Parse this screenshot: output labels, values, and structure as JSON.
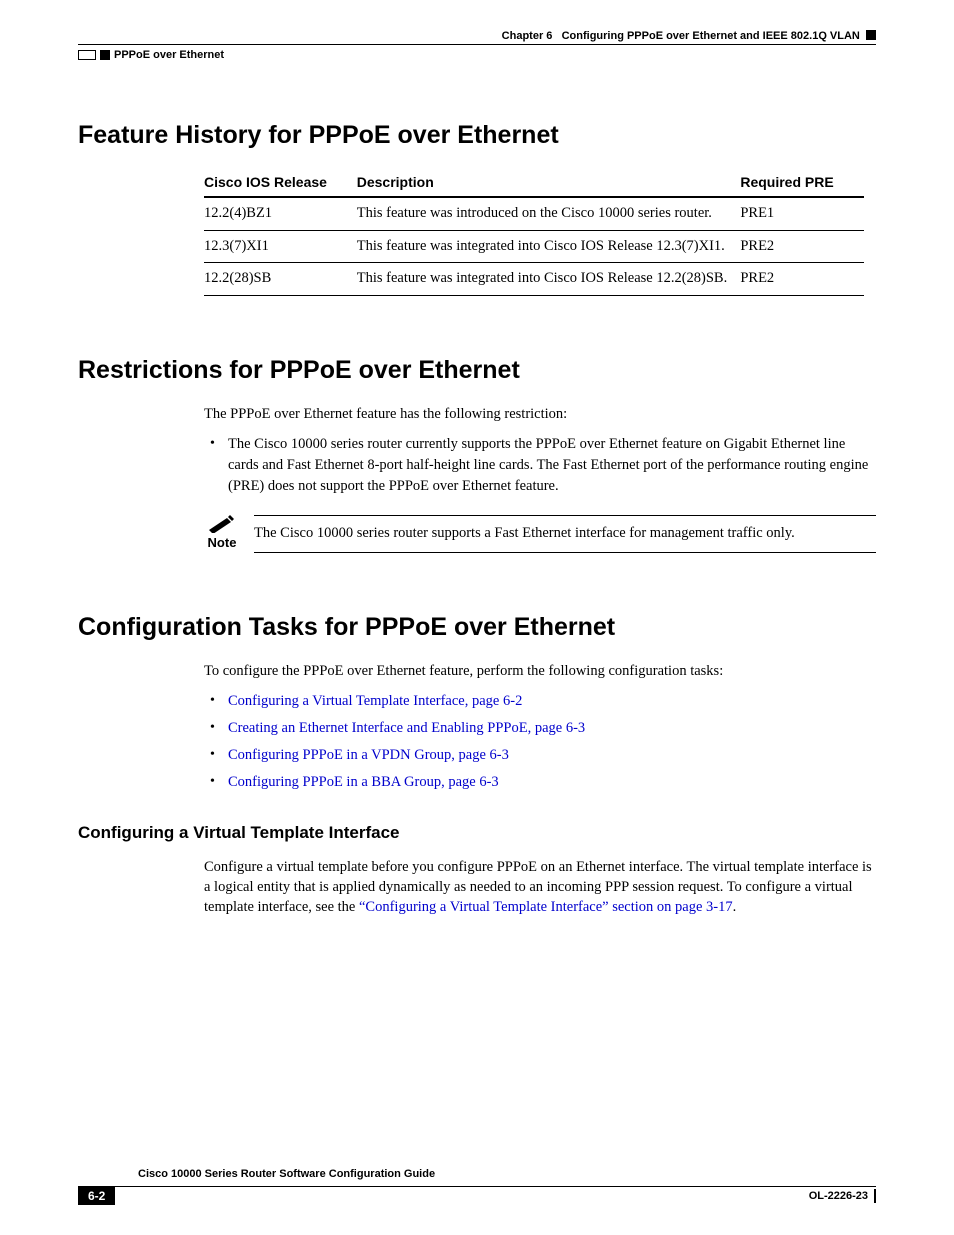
{
  "header": {
    "chapter_label": "Chapter 6",
    "chapter_title": "Configuring PPPoE over Ethernet and IEEE 802.1Q VLAN",
    "topic": "PPPoE over Ethernet"
  },
  "section1": {
    "title": "Feature History for PPPoE over Ethernet",
    "table": {
      "columns": [
        "Cisco IOS Release",
        "Description",
        "Required PRE"
      ],
      "col_widths": [
        "150px",
        "390px",
        "120px"
      ],
      "rows": [
        [
          "12.2(4)BZ1",
          "This feature was introduced on the Cisco 10000 series router.",
          "PRE1"
        ],
        [
          "12.3(7)XI1",
          "This feature was integrated into Cisco IOS Release 12.3(7)XI1.",
          "PRE2"
        ],
        [
          "12.2(28)SB",
          "This feature was integrated into Cisco IOS Release 12.2(28)SB.",
          "PRE2"
        ]
      ]
    }
  },
  "section2": {
    "title": "Restrictions for PPPoE over Ethernet",
    "intro": "The PPPoE over Ethernet feature has the following restriction:",
    "bullet1": "The Cisco 10000 series router currently supports the PPPoE over Ethernet feature on Gigabit Ethernet line cards and Fast Ethernet 8-port half-height line cards. The Fast Ethernet port of the performance routing engine (PRE) does not support the PPPoE over Ethernet feature.",
    "note_label": "Note",
    "note_text": "The Cisco 10000 series router supports a Fast Ethernet interface for management traffic only."
  },
  "section3": {
    "title": "Configuration Tasks for PPPoE over Ethernet",
    "intro": "To configure the PPPoE over Ethernet feature, perform the following configuration tasks:",
    "links": [
      "Configuring a Virtual Template Interface, page 6-2",
      "Creating an Ethernet Interface and Enabling PPPoE, page 6-3",
      "Configuring PPPoE in a VPDN Group, page 6-3",
      "Configuring PPPoE in a BBA Group, page 6-3"
    ],
    "subsection": {
      "title": "Configuring a Virtual Template Interface",
      "body_pre": "Configure a virtual template before you configure PPPoE on an Ethernet interface. The virtual template interface is a logical entity that is applied dynamically as needed to an incoming PPP session request. To configure a virtual template interface, see the ",
      "body_link": "“Configuring a Virtual Template Interface” section on page 3-17",
      "body_post": "."
    }
  },
  "footer": {
    "guide": "Cisco 10000 Series Router Software Configuration Guide",
    "page": "6-2",
    "doc_id": "OL-2226-23"
  },
  "colors": {
    "link": "#0000cc",
    "text": "#000000",
    "bg": "#ffffff"
  }
}
